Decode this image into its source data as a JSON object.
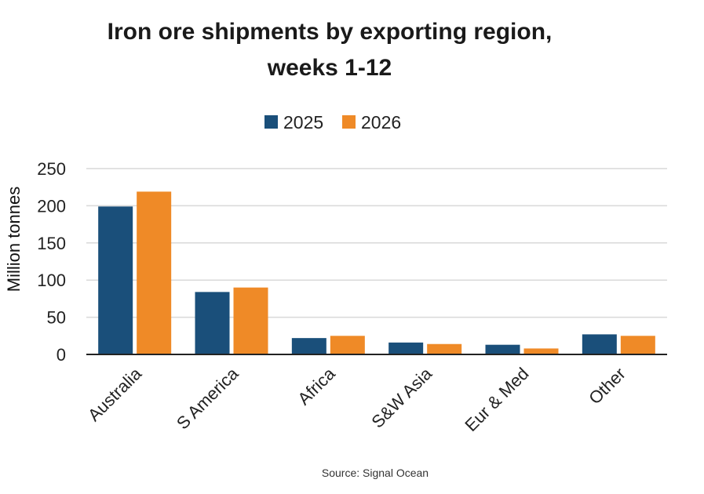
{
  "chart_data": {
    "type": "bar",
    "title_line1": "Iron ore shipments by exporting region,",
    "title_line2": "weeks 1-12",
    "categories": [
      "Australia",
      "S America",
      "Africa",
      "S&W Asia",
      "Eur & Med",
      "Other"
    ],
    "series": [
      {
        "name": "2025",
        "color": "#1a4f7a",
        "values": [
          199,
          84,
          22,
          16,
          13,
          27
        ]
      },
      {
        "name": "2026",
        "color": "#ef8a27",
        "values": [
          219,
          90,
          25,
          14,
          8,
          25
        ]
      }
    ],
    "ylabel": "Million tonnes",
    "xlabel": "",
    "ylim": [
      0,
      250
    ],
    "yticks": [
      0,
      50,
      100,
      150,
      200,
      250
    ],
    "grid": true,
    "legend": "top-center",
    "source": "Source: Signal Ocean"
  }
}
